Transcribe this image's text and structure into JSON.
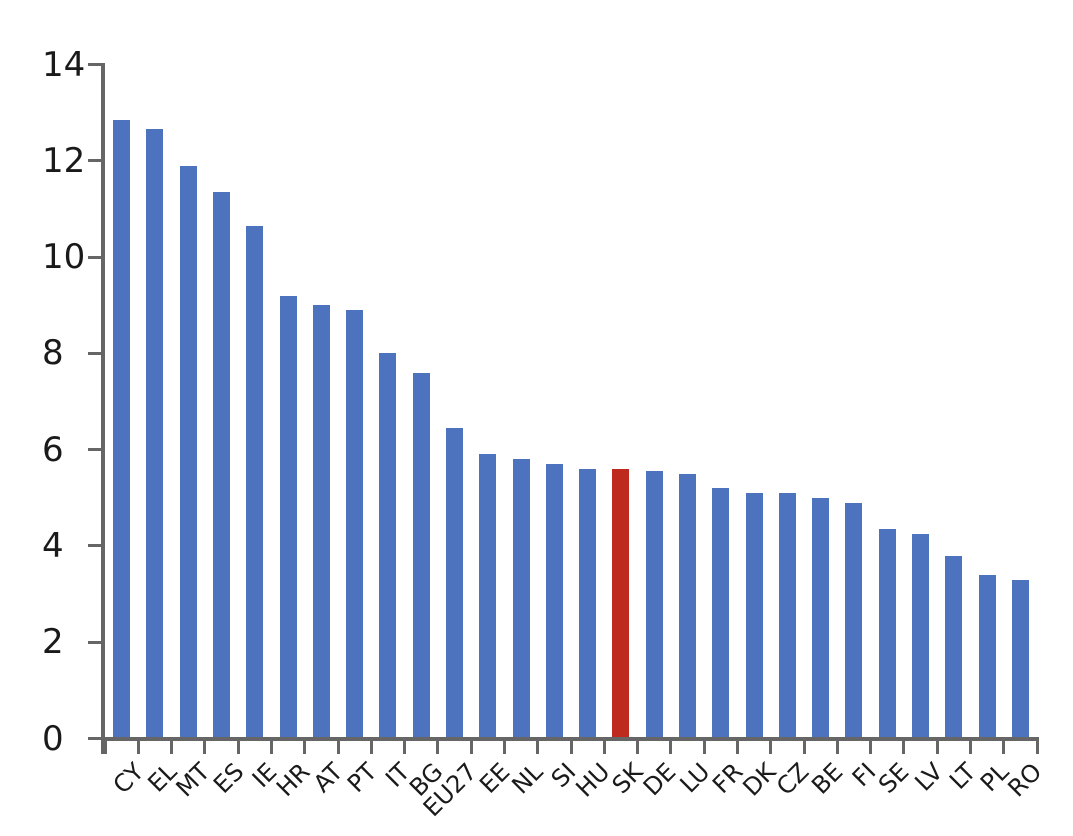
{
  "chart_data": {
    "type": "bar",
    "title": "",
    "xlabel": "",
    "ylabel": "",
    "categories": [
      "CY",
      "EL",
      "MT",
      "ES",
      "IE",
      "HR",
      "AT",
      "PT",
      "IT",
      "BG",
      "EU27",
      "EE",
      "NL",
      "SI",
      "HU",
      "SK",
      "DE",
      "LU",
      "FR",
      "DK",
      "CZ",
      "BE",
      "FI",
      "SE",
      "LV",
      "LT",
      "PL",
      "RO"
    ],
    "values": [
      12.85,
      12.65,
      11.9,
      11.35,
      10.65,
      9.2,
      9.0,
      8.9,
      8.0,
      7.6,
      6.45,
      5.9,
      5.8,
      5.7,
      5.6,
      5.6,
      5.55,
      5.5,
      5.2,
      5.1,
      5.1,
      5.0,
      4.9,
      4.35,
      4.25,
      3.8,
      3.4,
      3.3
    ],
    "highlight": {
      "category": "SK",
      "index": 15
    },
    "ylim": [
      0,
      14
    ],
    "yticks": [
      0,
      2,
      4,
      6,
      8,
      10,
      12,
      14
    ],
    "ytick_labels": [
      "0",
      "2",
      "4",
      "6",
      "8",
      "10",
      "12",
      "14"
    ],
    "grid": false,
    "legend": null,
    "colors": {
      "bar": "#4D73BF",
      "highlight": "#BE2A1D",
      "axis": "#666666",
      "text": "#1A1A1A",
      "background": "#FFFFFF"
    }
  }
}
